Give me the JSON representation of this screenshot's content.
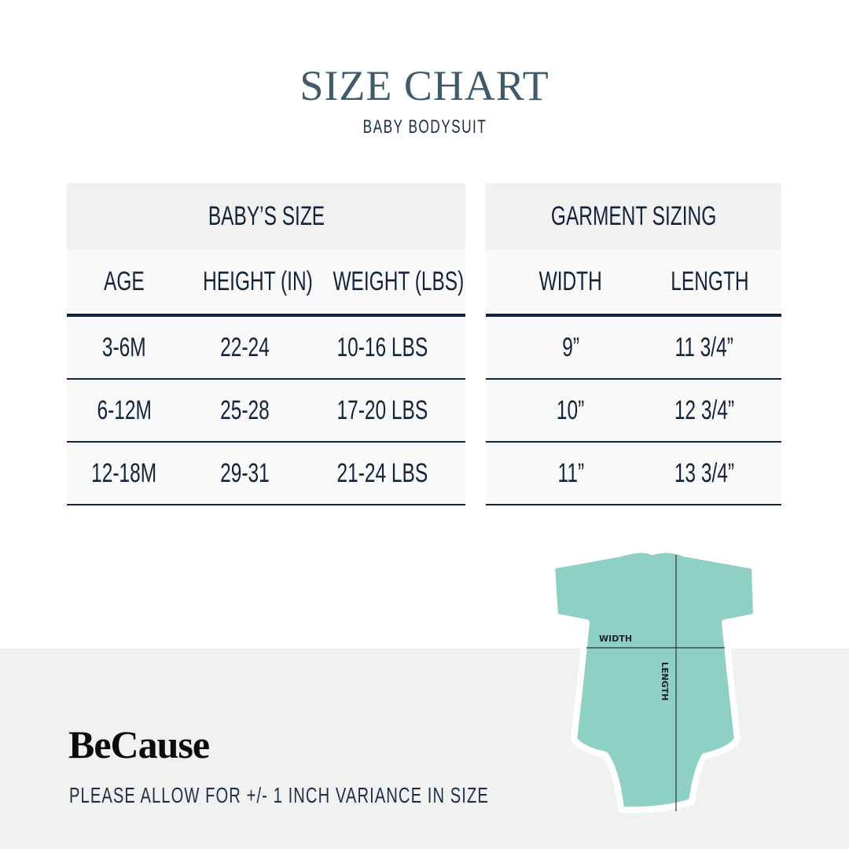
{
  "title": "SIZE CHART",
  "subtitle": "BABY BODYSUIT",
  "babys_size": {
    "heading": "BABY’S SIZE",
    "columns": [
      "AGE",
      "HEIGHT (IN)",
      "WEIGHT (LBS)"
    ],
    "rows": [
      [
        "3-6M",
        "22-24",
        "10-16 LBS"
      ],
      [
        "6-12M",
        "25-28",
        "17-20 LBS"
      ],
      [
        "12-18M",
        "29-31",
        "21-24 LBS"
      ]
    ]
  },
  "garment_sizing": {
    "heading": "GARMENT SIZING",
    "columns": [
      "WIDTH",
      "LENGTH"
    ],
    "rows": [
      [
        "9”",
        "11 3/4”"
      ],
      [
        "10”",
        "12 3/4”"
      ],
      [
        "11”",
        "13 3/4”"
      ]
    ]
  },
  "diagram": {
    "width_label": "WIDTH",
    "length_label": "LENGTH",
    "garment_color": "#8fd0c5"
  },
  "brand": "BeCause",
  "note": "PLEASE ALLOW FOR +/- 1 INCH VARIANCE IN SIZE"
}
